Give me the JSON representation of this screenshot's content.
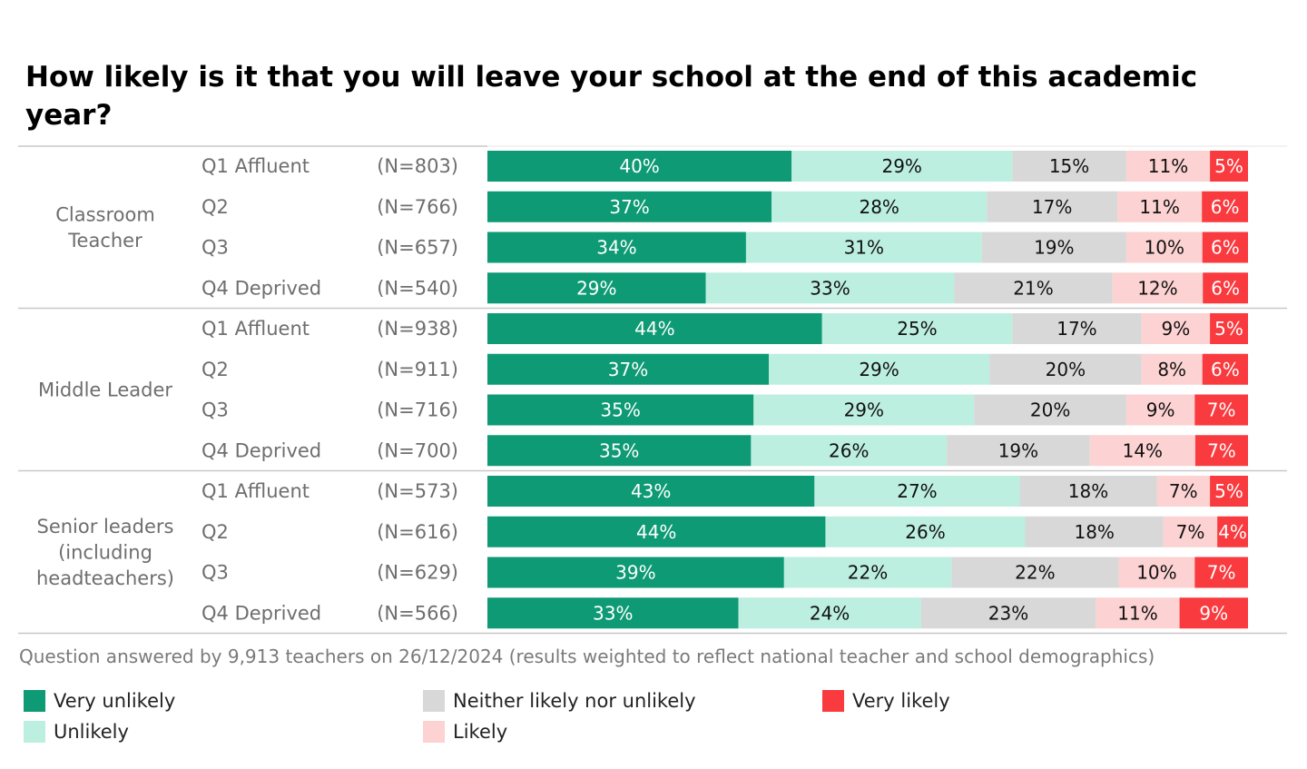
{
  "chart_data": {
    "type": "stacked-bar-horizontal",
    "title": "How likely is it that you will leave your school at the end of this academic year?",
    "footnote": "Question answered by 9,913 teachers on 26/12/2024 (results weighted to reflect national teacher and school demographics)",
    "categories_legend": [
      {
        "name": "Very unlikely",
        "color": "#0e9a74",
        "text_color": "#ffffff"
      },
      {
        "name": "Unlikely",
        "color": "#bcefdf",
        "text_color": "#111111"
      },
      {
        "name": "Neither likely nor unlikely",
        "color": "#d8d8d8",
        "text_color": "#111111"
      },
      {
        "name": "Likely",
        "color": "#fcd2d2",
        "text_color": "#111111"
      },
      {
        "name": "Very likely",
        "color": "#f93a3e",
        "text_color": "#ffffff"
      }
    ],
    "groups": [
      {
        "name": "Classroom Teacher",
        "rows": [
          {
            "label": "Q1 Affluent",
            "n": "(N=803)",
            "values": [
              40,
              29,
              15,
              11,
              5
            ]
          },
          {
            "label": "Q2",
            "n": "(N=766)",
            "values": [
              37,
              28,
              17,
              11,
              6
            ]
          },
          {
            "label": "Q3",
            "n": "(N=657)",
            "values": [
              34,
              31,
              19,
              10,
              6
            ]
          },
          {
            "label": "Q4 Deprived",
            "n": "(N=540)",
            "values": [
              29,
              33,
              21,
              12,
              6
            ]
          }
        ]
      },
      {
        "name": "Middle Leader",
        "rows": [
          {
            "label": "Q1 Affluent",
            "n": "(N=938)",
            "values": [
              44,
              25,
              17,
              9,
              5
            ]
          },
          {
            "label": "Q2",
            "n": "(N=911)",
            "values": [
              37,
              29,
              20,
              8,
              6
            ]
          },
          {
            "label": "Q3",
            "n": "(N=716)",
            "values": [
              35,
              29,
              20,
              9,
              7
            ]
          },
          {
            "label": "Q4 Deprived",
            "n": "(N=700)",
            "values": [
              35,
              26,
              19,
              14,
              7
            ]
          }
        ]
      },
      {
        "name": "Senior leaders (including headteachers)",
        "rows": [
          {
            "label": "Q1 Affluent",
            "n": "(N=573)",
            "values": [
              43,
              27,
              18,
              7,
              5
            ]
          },
          {
            "label": "Q2",
            "n": "(N=616)",
            "values": [
              44,
              26,
              18,
              7,
              4
            ]
          },
          {
            "label": "Q3",
            "n": "(N=629)",
            "values": [
              39,
              22,
              22,
              10,
              7
            ]
          },
          {
            "label": "Q4 Deprived",
            "n": "(N=566)",
            "values": [
              33,
              24,
              23,
              11,
              9
            ]
          }
        ]
      }
    ],
    "group_label_lines": [
      [
        "Classroom",
        "Teacher"
      ],
      [
        "Middle Leader"
      ],
      [
        "Senior leaders",
        "(including",
        "headteachers)"
      ]
    ],
    "value_suffix": "%",
    "xlim": [
      0,
      100
    ]
  }
}
